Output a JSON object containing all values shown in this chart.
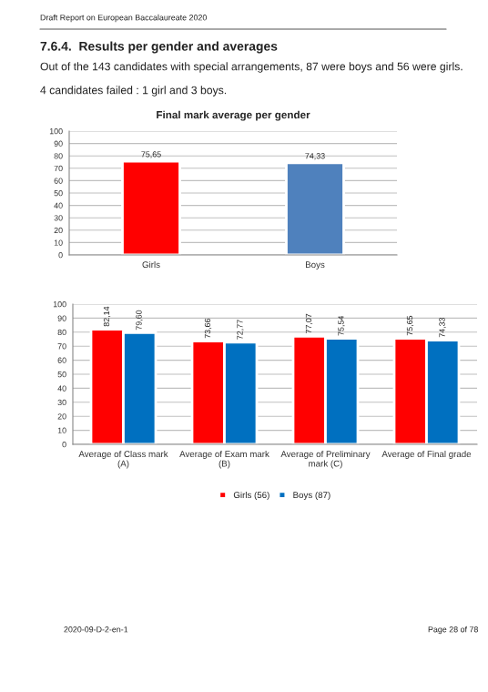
{
  "chart_data": [
    {
      "type": "bar",
      "title": "Final mark average per gender",
      "categories": [
        "Girls",
        "Boys"
      ],
      "values": [
        75.65,
        74.33
      ],
      "colors": [
        "#ff0000",
        "#4f81bd"
      ],
      "value_labels": [
        "75,65",
        "74,33"
      ],
      "ylim": [
        0,
        100
      ],
      "yticks": [
        0,
        10,
        20,
        30,
        40,
        50,
        60,
        70,
        80,
        90,
        100
      ],
      "grid": "y",
      "annotations": [
        "Draft Report on European Baccalaureate 2020",
        "7.6.4.  Results per gender and averages",
        "Out of the 143 candidates with special arrangements, 87 were boys and 56 were girls.",
        "4 candidates failed : 1 girl and 3 boys.",
        "2020-09-D-2-en-1",
        "Page 28 of 78"
      ]
    },
    {
      "type": "bar",
      "categories": [
        "Average of Class mark\n(A)",
        "Average of Exam mark\n(B)",
        "Average of Preliminary\nmark (C)",
        "Average of Final grade"
      ],
      "series": [
        {
          "name": "Girls (56)",
          "color": "#ff0000",
          "values": [
            82.14,
            73.66,
            77.07,
            75.65
          ],
          "value_labels": [
            "82,14",
            "73,66",
            "77,07",
            "75,65"
          ]
        },
        {
          "name": "Boys (87)",
          "color": "#0070c0",
          "values": [
            79.6,
            72.77,
            75.54,
            74.33
          ],
          "value_labels": [
            "79,60",
            "72,77",
            "75,54",
            "74,33"
          ]
        }
      ],
      "ylim": [
        0,
        100
      ],
      "yticks": [
        0,
        10,
        20,
        30,
        40,
        50,
        60,
        70,
        80,
        90,
        100
      ],
      "grid": "y",
      "legend": "bottom"
    }
  ]
}
